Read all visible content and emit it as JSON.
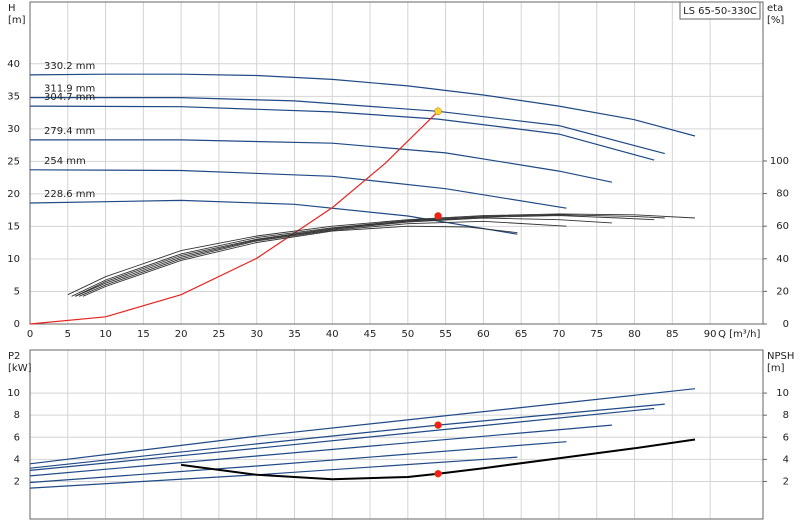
{
  "chart_data": [
    {
      "type": "line",
      "title": "LS 65-50-330C",
      "ylabel": "H",
      "yunit": "[m]",
      "y2label": "eta",
      "y2unit": "[%]",
      "xlabel": "Q [m³/h]",
      "xlim": [
        0,
        97
      ],
      "xticks": [
        0,
        5,
        10,
        15,
        20,
        25,
        30,
        35,
        40,
        45,
        50,
        55,
        60,
        65,
        70,
        75,
        80,
        85,
        90
      ],
      "ylim": [
        0,
        49.5
      ],
      "yticks": [
        0,
        5,
        10,
        15,
        20,
        25,
        30,
        35,
        40
      ],
      "y2lim": [
        0,
        197.5
      ],
      "y2ticks": [
        0,
        20,
        40,
        60,
        80,
        100
      ],
      "grid": true,
      "series": [
        {
          "name": "330.2 mm",
          "color": "#1f4a86",
          "x": [
            0,
            10,
            20,
            30,
            40,
            50,
            60,
            70,
            80,
            88
          ],
          "values": [
            38.3,
            38.4,
            38.4,
            38.2,
            37.6,
            36.6,
            35.2,
            33.5,
            31.4,
            28.9
          ]
        },
        {
          "name": "311.9 mm",
          "color": "#1f4a86",
          "x": [
            0,
            20,
            35,
            54,
            70,
            84
          ],
          "values": [
            34.8,
            34.8,
            34.3,
            32.7,
            30.5,
            26.2
          ]
        },
        {
          "name": "304.7 mm",
          "color": "#1f4a86",
          "x": [
            0,
            20,
            40,
            54,
            70,
            82.6
          ],
          "values": [
            33.5,
            33.4,
            32.6,
            31.5,
            29.2,
            25.2
          ]
        },
        {
          "name": "279.4 mm",
          "color": "#1f4a86",
          "x": [
            0,
            20,
            40,
            55,
            70,
            77
          ],
          "values": [
            28.3,
            28.3,
            27.8,
            26.3,
            23.5,
            21.8
          ]
        },
        {
          "name": "254 mm",
          "color": "#1f4a86",
          "x": [
            0,
            20,
            40,
            55,
            71
          ],
          "values": [
            23.7,
            23.6,
            22.7,
            20.8,
            17.8
          ]
        },
        {
          "name": "228.6 mm",
          "color": "#1f4a86",
          "x": [
            0,
            20,
            35,
            50,
            64.5
          ],
          "values": [
            18.6,
            19.0,
            18.4,
            16.6,
            13.8
          ]
        },
        {
          "color": "#e8231f",
          "x": [
            0,
            10,
            20,
            30,
            40,
            47,
            54
          ],
          "values": [
            0,
            1.1,
            4.5,
            10.1,
            17.9,
            24.7,
            32.7
          ]
        },
        {
          "color": "#333333",
          "axis": "y2",
          "x": [
            5,
            10,
            20,
            30,
            40,
            50,
            60,
            70,
            80,
            88
          ],
          "values": [
            18,
            29,
            45,
            54,
            60,
            64,
            66.5,
            67.5,
            67,
            65
          ]
        },
        {
          "color": "#333333",
          "axis": "y2",
          "x": [
            5.5,
            10,
            20,
            30,
            40,
            50,
            60,
            70,
            80,
            84
          ],
          "values": [
            17,
            27,
            43,
            53,
            59,
            63.5,
            66,
            67,
            66,
            65
          ]
        },
        {
          "color": "#333333",
          "axis": "y2",
          "x": [
            6,
            10,
            20,
            30,
            40,
            50,
            60,
            70,
            78,
            82.6
          ],
          "values": [
            17,
            26,
            42,
            52,
            58.5,
            63,
            65.5,
            66.5,
            65,
            64
          ]
        },
        {
          "color": "#333333",
          "axis": "y2",
          "x": [
            6,
            10,
            20,
            30,
            40,
            50,
            60,
            70,
            77
          ],
          "values": [
            17,
            25,
            41,
            51.5,
            58,
            62.5,
            65,
            64,
            62
          ]
        },
        {
          "color": "#333333",
          "axis": "y2",
          "x": [
            6.5,
            10,
            20,
            30,
            40,
            50,
            60,
            71
          ],
          "values": [
            17,
            24,
            40,
            51,
            57.5,
            61.5,
            63,
            60
          ]
        },
        {
          "color": "#333333",
          "axis": "y2",
          "x": [
            7,
            10,
            20,
            30,
            40,
            50,
            58,
            64.5
          ],
          "values": [
            17,
            23,
            39,
            50,
            57,
            60,
            59.5,
            56
          ]
        }
      ],
      "points": [
        {
          "x": 54,
          "value": 32.7,
          "color": "#ffd42a"
        },
        {
          "x": 54,
          "value": 66.3,
          "axis": "y2",
          "color": "#ff1a1a"
        }
      ]
    },
    {
      "type": "line",
      "ylabel": "P2",
      "yunit": "[kW]",
      "y2label": "NPSH",
      "y2unit": "[m]",
      "xlim": [
        0,
        97
      ],
      "xticks": [
        0,
        5,
        10,
        15,
        20,
        25,
        30,
        35,
        40,
        45,
        50,
        55,
        60,
        65,
        70,
        75,
        80,
        85,
        90
      ],
      "ylim": [
        -1.4,
        13.9
      ],
      "yticks": [
        2,
        4,
        6,
        8,
        10
      ],
      "y2lim": [
        -1.4,
        13.9
      ],
      "y2ticks": [
        2,
        4,
        6,
        8,
        10
      ],
      "grid": true,
      "series": [
        {
          "color": "#1f4a86",
          "x": [
            0,
            30,
            88
          ],
          "values": [
            3.6,
            6.1,
            10.4
          ]
        },
        {
          "color": "#1f4a86",
          "x": [
            0,
            30,
            54,
            84
          ],
          "values": [
            3.2,
            5.4,
            7.1,
            9.0
          ]
        },
        {
          "color": "#1f4a86",
          "x": [
            0,
            30,
            82.6
          ],
          "values": [
            3.0,
            5.0,
            8.6
          ]
        },
        {
          "color": "#1f4a86",
          "x": [
            0,
            30,
            77
          ],
          "values": [
            2.5,
            4.3,
            7.1
          ]
        },
        {
          "color": "#1f4a86",
          "x": [
            0,
            30,
            71
          ],
          "values": [
            1.9,
            3.4,
            5.6
          ]
        },
        {
          "color": "#1f4a86",
          "x": [
            0,
            30,
            64.5
          ],
          "values": [
            1.4,
            2.6,
            4.2
          ]
        },
        {
          "color": "#000000",
          "axis": "y2",
          "x": [
            20,
            30,
            40,
            50,
            54,
            60,
            70,
            80,
            88
          ],
          "values": [
            3.5,
            2.6,
            2.2,
            2.4,
            2.7,
            3.2,
            4.1,
            5.0,
            5.8
          ]
        }
      ],
      "points": [
        {
          "x": 54,
          "value": 7.1,
          "color": "#ff1a1a"
        },
        {
          "x": 54,
          "value": 2.7,
          "axis": "y2",
          "color": "#ff1a1a"
        }
      ]
    }
  ]
}
